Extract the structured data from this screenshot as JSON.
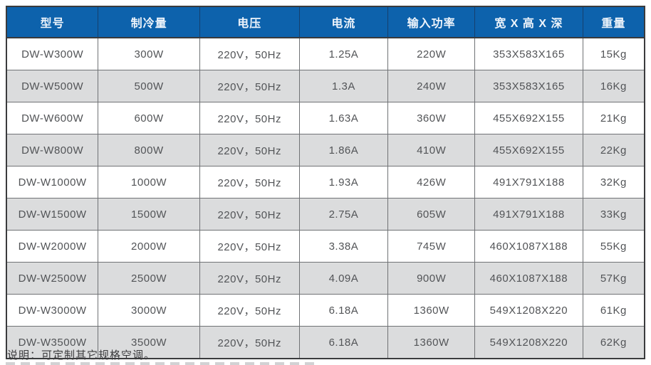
{
  "table": {
    "headers": [
      "型号",
      "制冷量",
      "电压",
      "电流",
      "输入功率",
      "宽 X 高 X 深",
      "重量"
    ],
    "rows": [
      [
        "DW-W300W",
        "300W",
        "220V，50Hz",
        "1.25A",
        "220W",
        "353X583X165",
        "15Kg"
      ],
      [
        "DW-W500W",
        "500W",
        "220V，50Hz",
        "1.3A",
        "240W",
        "353X583X165",
        "16Kg"
      ],
      [
        "DW-W600W",
        "600W",
        "220V，50Hz",
        "1.63A",
        "360W",
        "455X692X155",
        "21Kg"
      ],
      [
        "DW-W800W",
        "800W",
        "220V，50Hz",
        "1.86A",
        "410W",
        "455X692X155",
        "22Kg"
      ],
      [
        "DW-W1000W",
        "1000W",
        "220V，50Hz",
        "1.93A",
        "426W",
        "491X791X188",
        "32Kg"
      ],
      [
        "DW-W1500W",
        "1500W",
        "220V，50Hz",
        "2.75A",
        "605W",
        "491X791X188",
        "33Kg"
      ],
      [
        "DW-W2000W",
        "2000W",
        "220V，50Hz",
        "3.38A",
        "745W",
        "460X1087X188",
        "55Kg"
      ],
      [
        "DW-W2500W",
        "2500W",
        "220V，50Hz",
        "4.09A",
        "900W",
        "460X1087X188",
        "57Kg"
      ],
      [
        "DW-W3000W",
        "3000W",
        "220V，50Hz",
        "6.18A",
        "1360W",
        "549X1208X220",
        "61Kg"
      ],
      [
        "DW-W3500W",
        "3500W",
        "220V，50Hz",
        "6.18A",
        "1360W",
        "549X1208X220",
        "62Kg"
      ]
    ]
  },
  "note": "说明：可定制其它规格空调。",
  "colors": {
    "header_bg": "#0d62ac",
    "header_text": "#eef4fb",
    "row_alt_bg": "#dbdcdd",
    "inner_border": "#707275",
    "outer_border": "#3a3b3d",
    "cell_text": "#525457",
    "note_text": "#3c3c3e"
  }
}
